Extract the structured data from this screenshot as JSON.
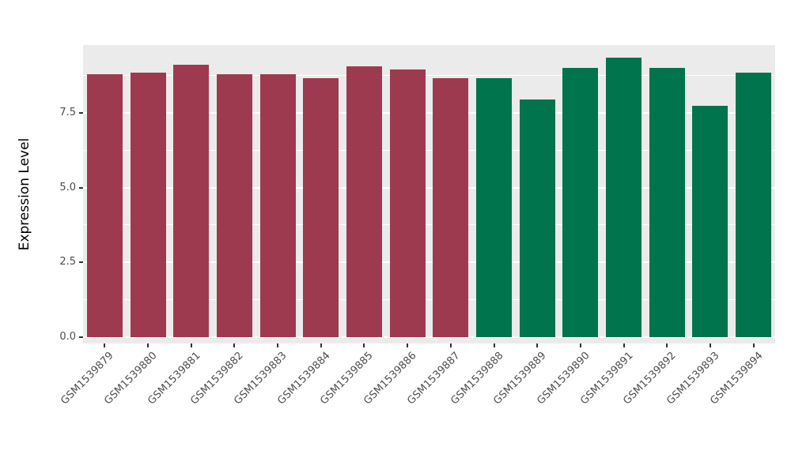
{
  "figure": {
    "background_color": "#FFFFFF",
    "panel_background_color": "#EBEBEB",
    "grid_color": "#FFFFFF",
    "tick_mark_color": "#333333",
    "tick_label_color": "#4D4D4D",
    "axis_title_color": "#000000"
  },
  "chart_data": {
    "type": "bar",
    "title": "",
    "xlabel": "",
    "ylabel": "Expression Level",
    "ylim": [
      0,
      9.8
    ],
    "grid": true,
    "legend_position": "none",
    "yticks": [
      0,
      2.5,
      5,
      7.5
    ],
    "ytick_labels": [
      "0.0",
      "2.5",
      "5.0",
      "7.5"
    ],
    "yticks_minor": [
      1.25,
      3.75,
      6.25,
      8.75
    ],
    "categories": [
      "GSM1539879",
      "GSM1539880",
      "GSM1539881",
      "GSM1539882",
      "GSM1539883",
      "GSM1539884",
      "GSM1539885",
      "GSM1539886",
      "GSM1539887",
      "GSM1539888",
      "GSM1539889",
      "GSM1539890",
      "GSM1539891",
      "GSM1539892",
      "GSM1539893",
      "GSM1539894"
    ],
    "values": [
      8.8,
      8.85,
      9.1,
      8.8,
      8.8,
      8.65,
      9.05,
      8.95,
      8.65,
      8.65,
      7.95,
      9.0,
      9.35,
      9.0,
      7.75,
      8.85
    ],
    "bar_colors": [
      "#9E3A4F",
      "#9E3A4F",
      "#9E3A4F",
      "#9E3A4F",
      "#9E3A4F",
      "#9E3A4F",
      "#9E3A4F",
      "#9E3A4F",
      "#9E3A4F",
      "#00744C",
      "#00744C",
      "#00744C",
      "#00744C",
      "#00744C",
      "#00744C",
      "#00744C"
    ],
    "group_colors": {
      "left_group": "#9E3A4F",
      "right_group": "#00744C"
    }
  }
}
